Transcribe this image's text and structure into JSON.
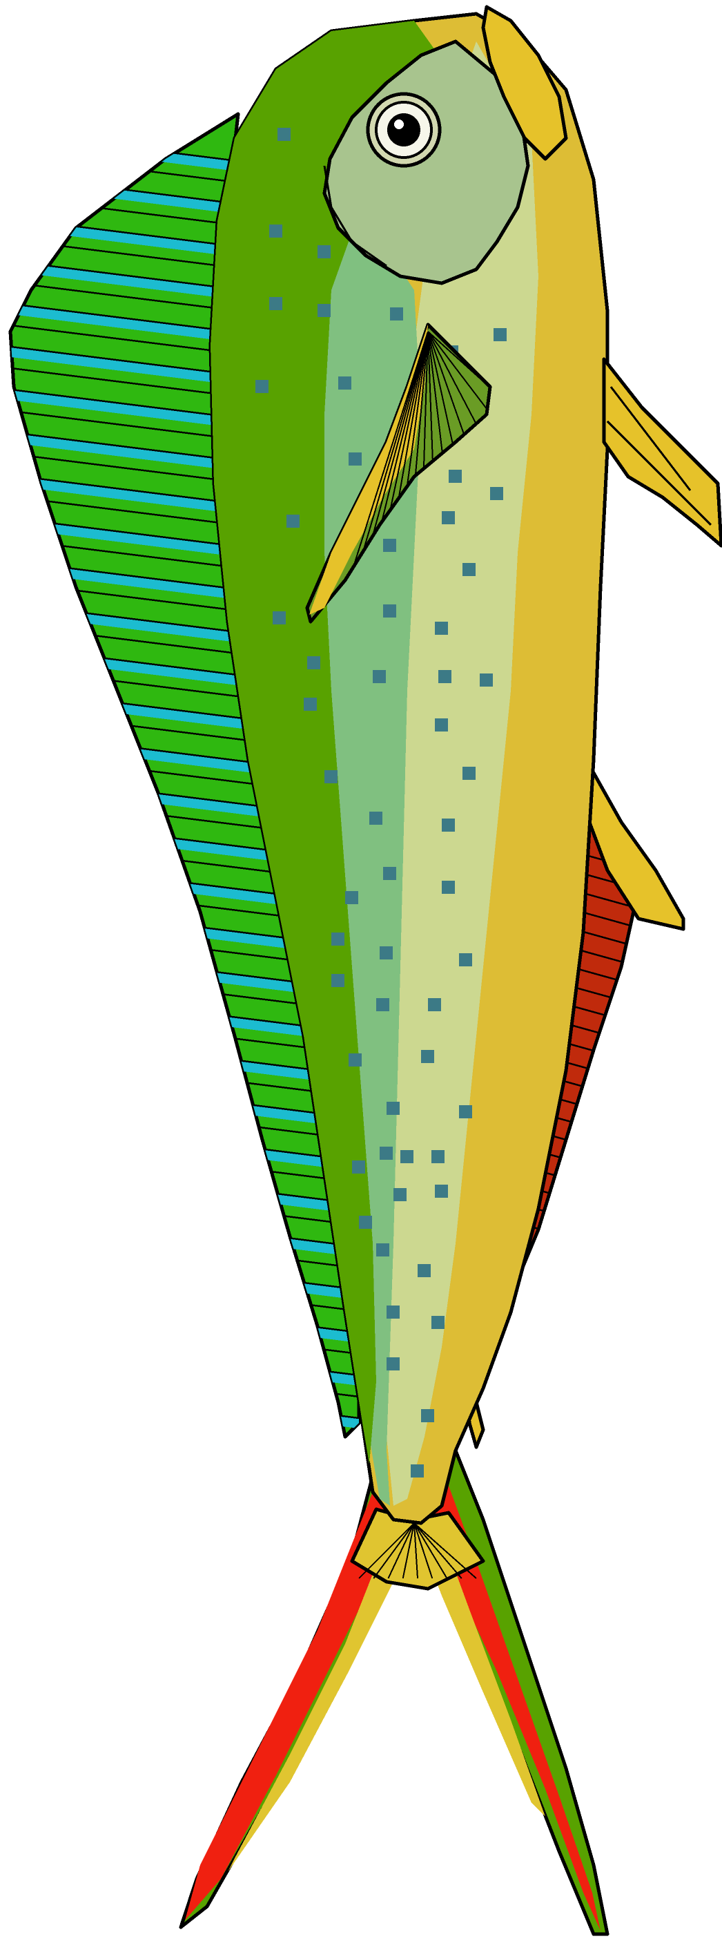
{
  "subject": "mahi-mahi-fish-illustration",
  "colors": {
    "background": "#ffffff",
    "outline": "#000000",
    "back_dark_green": "#58a200",
    "dorsal_green": "#2fb810",
    "dorsal_cyan": "#1cbcd0",
    "head_sage": "#a8c48e",
    "side_mint": "#80c080",
    "belly_cream": "#ccd890",
    "belly_gold": "#ddbd35",
    "fin_yellow": "#e6c22a",
    "pectoral_olive": "#6a9c25",
    "anal_red": "#c02a0c",
    "tail_red": "#f02010",
    "tail_yellow": "#e0c530",
    "spot_teal": "#3c7a86",
    "eye_white": "#f6f6ea"
  },
  "parts": [
    "head",
    "eye",
    "jaw",
    "dorsal-fin",
    "pectoral-fin",
    "pelvic-fin",
    "anal-fin",
    "caudal-fin",
    "spots"
  ]
}
